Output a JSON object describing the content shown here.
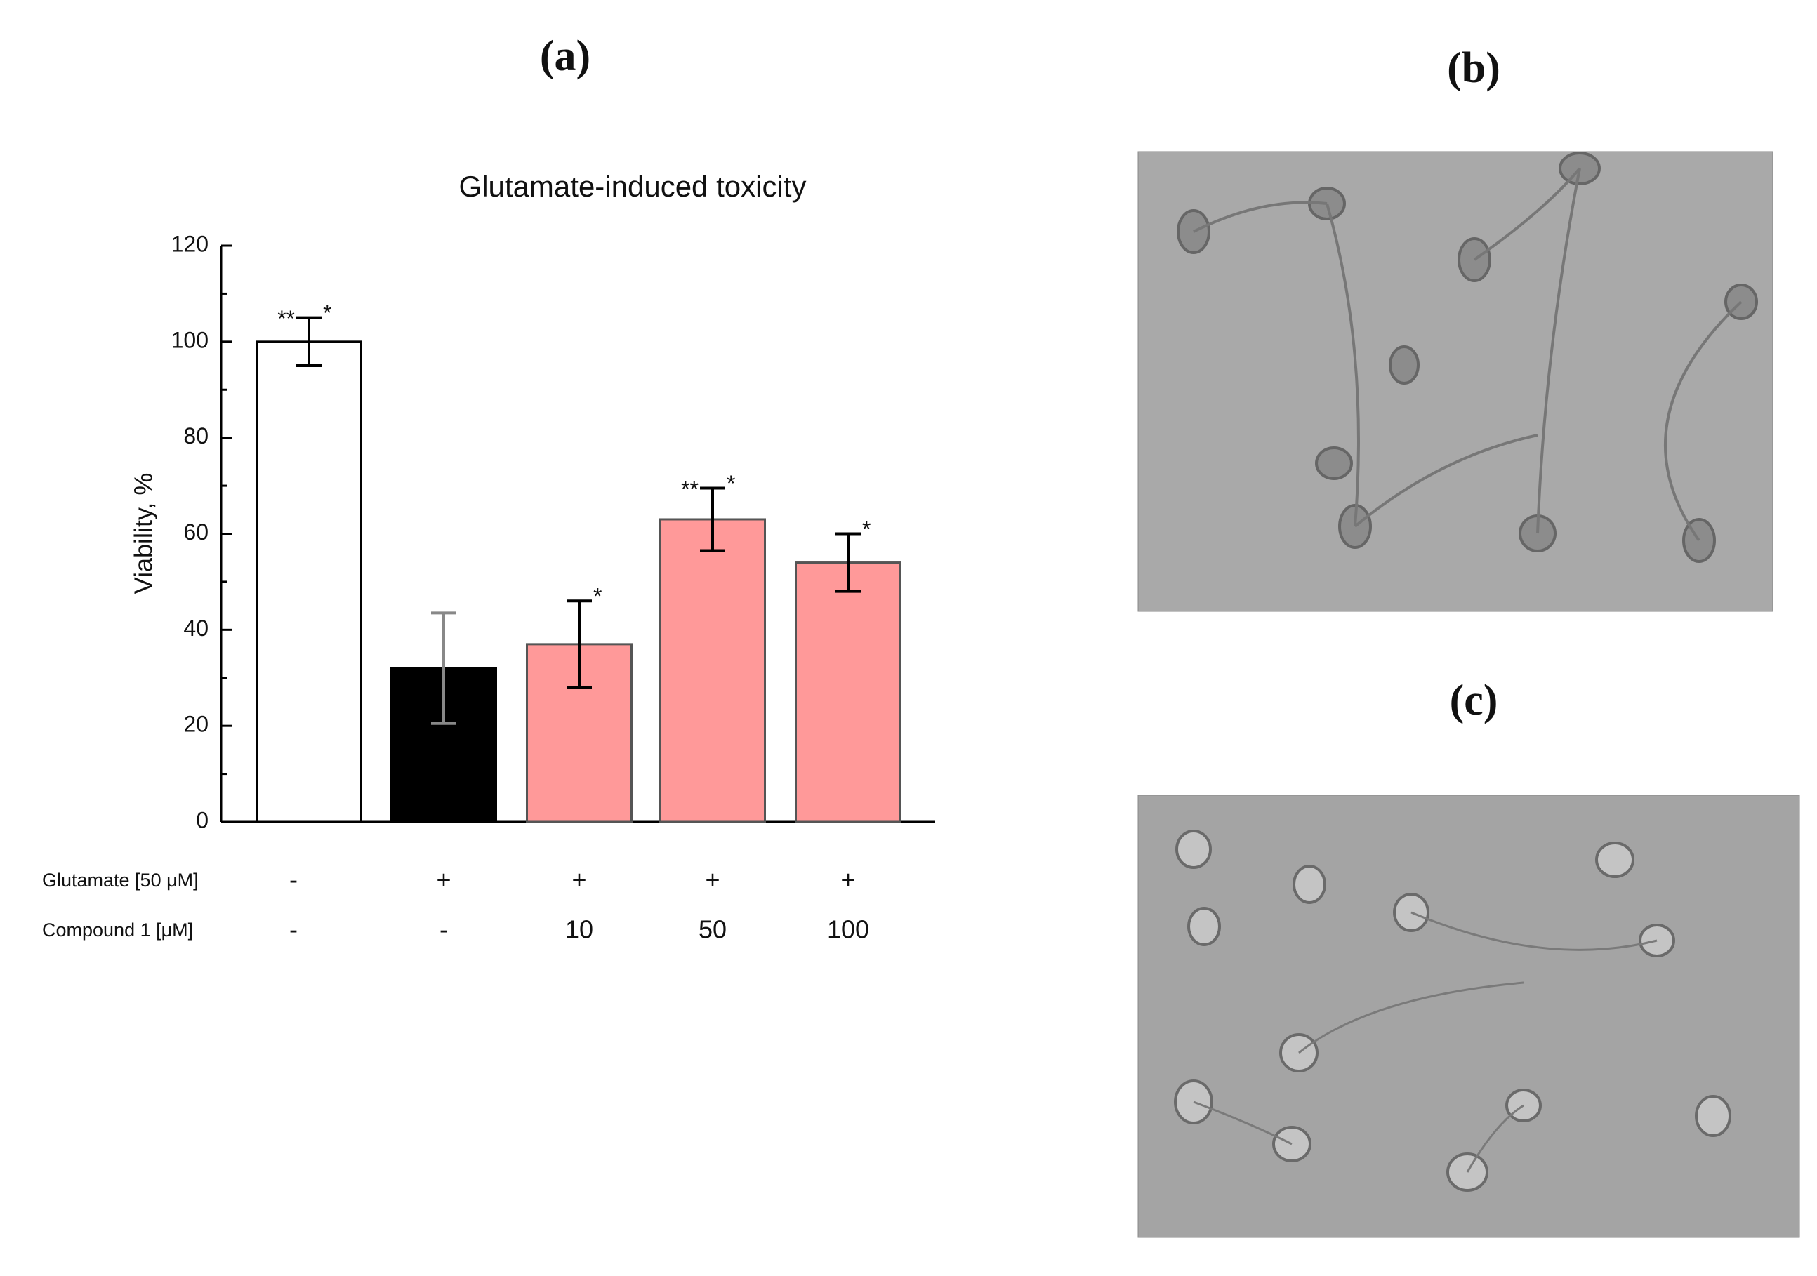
{
  "panel_labels": [
    "(a)",
    "(b)",
    "(c)"
  ],
  "chart_data": {
    "type": "bar",
    "title": "Glutamate-induced toxicity",
    "ylabel": "Viability, %",
    "values": [
      100,
      32,
      37,
      63,
      54
    ],
    "errors": [
      5,
      11.5,
      9,
      6.5,
      6
    ],
    "colors": [
      "#ffffff",
      "#000000",
      "#ff9999",
      "#ff9999",
      "#ff9999"
    ],
    "edge_colors": [
      "#000000",
      "#000000",
      "#555555",
      "#555555",
      "#555555"
    ],
    "error_colors": [
      "#000000",
      "#888888",
      "#000000",
      "#000000",
      "#000000"
    ],
    "annotations_left": [
      "**",
      null,
      null,
      "**",
      null
    ],
    "annotations_right": [
      "*",
      null,
      "*",
      "*",
      "*"
    ],
    "ylim": [
      0,
      120
    ],
    "yticks": [
      0,
      20,
      40,
      60,
      80,
      100,
      120
    ],
    "yminorticks": [
      10,
      30,
      50,
      70,
      90,
      110
    ],
    "conditions": [
      {
        "label": "Glutamate [50 μM]",
        "values": [
          "-",
          "+",
          "+",
          "+",
          "+"
        ]
      },
      {
        "label": "Compound 1 [μM]",
        "values": [
          "-",
          "-",
          "10",
          "50",
          "100"
        ]
      }
    ]
  }
}
